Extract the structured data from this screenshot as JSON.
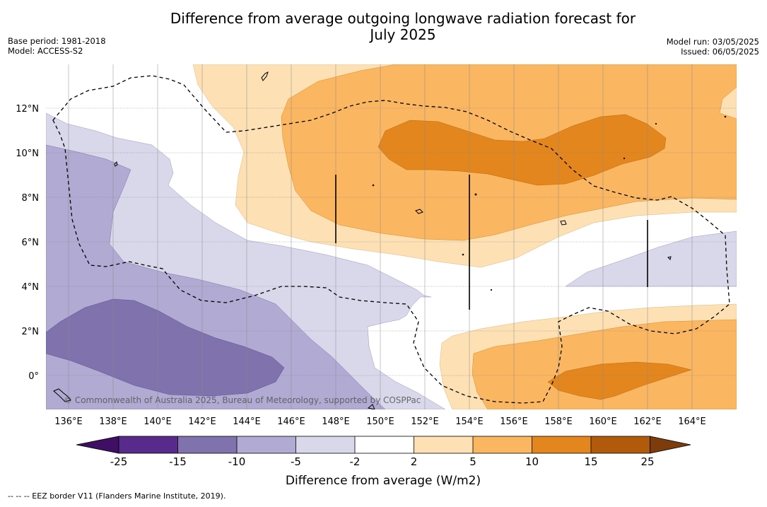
{
  "title_line1": "Difference from average outgoing longwave radiation forecast for",
  "title_line2": "July 2025",
  "base_period": "Base period: 1981-2018",
  "model": "Model: ACCESS-S2",
  "model_run": "Model run: 03/05/2025",
  "issued": "Issued: 06/05/2025",
  "copyright": "© Commonwealth of Australia 2025, Bureau of Meteorology, supported by COSPPac",
  "lat_labels": [
    "12°N",
    "10°N",
    "8°N",
    "6°N",
    "4°N",
    "2°N",
    "0°"
  ],
  "lon_labels": [
    "136°E",
    "138°E",
    "140°E",
    "142°E",
    "144°E",
    "146°E",
    "148°E",
    "150°E",
    "152°E",
    "154°E",
    "156°E",
    "158°E",
    "160°E",
    "162°E",
    "164°E"
  ],
  "colorbar": {
    "label": "Difference from average (W/m2)",
    "ticks": [
      "-25",
      "-15",
      "-10",
      "-5",
      "-2",
      "2",
      "5",
      "10",
      "15",
      "25"
    ],
    "colors": [
      "#3f0f63",
      "#582a8c",
      "#7f72ad",
      "#b1aad2",
      "#d9d8ea",
      "#ffffff",
      "#fde0b4",
      "#fbb661",
      "#e3861d",
      "#b25a0c",
      "#7d3c0c"
    ]
  },
  "footnote": "--  --  -- EEZ border V11 (Flanders Marine Institute, 2019)."
}
